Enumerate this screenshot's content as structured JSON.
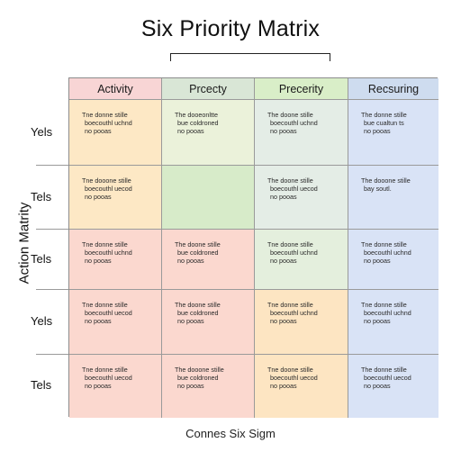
{
  "title": "Six Priority Matrix",
  "footer": "Connes Six Sigm",
  "axis_label": "Action Matrity",
  "columns": [
    "Activity",
    "Prcecty",
    "Precerity",
    "Recsuring"
  ],
  "row_labels": [
    "Yels",
    "Tels",
    "Tels",
    "Yels",
    "Tels"
  ],
  "colors": {
    "header": [
      "#f8d5d5",
      "#d9e6d6",
      "#d9eec8",
      "#cedcef"
    ],
    "rows": [
      [
        "#fde8c5",
        "#ebf2da",
        "#e4ede6",
        "#d9e3f6"
      ],
      [
        "#fde8c5",
        "#d7ebc9",
        "#e4ede6",
        "#d9e3f6"
      ],
      [
        "#fbd8cf",
        "#fbd8cf",
        "#e4efdd",
        "#d9e3f6"
      ],
      [
        "#fbd8cf",
        "#fbd8cf",
        "#fde5c2",
        "#d9e3f6"
      ],
      [
        "#fbd8cf",
        "#fbd8cf",
        "#fde5c2",
        "#d9e3f6"
      ]
    ]
  },
  "cells": [
    [
      {
        "lines": [
          "Tne donne stille",
          "boecouthl uchnd",
          "no pooas"
        ]
      },
      {
        "lines": [
          "The dooeonltte",
          "bue coldroned",
          "no pooas"
        ]
      },
      {
        "lines": [
          "The doone stille",
          "boecouthl uchnd",
          "no pooas"
        ]
      },
      {
        "lines": [
          "The donne stille",
          "bue cualtun ts",
          "no pooas"
        ]
      }
    ],
    [
      {
        "lines": [
          "Tne dooone stille",
          "boecouthl uecod",
          "no pooas"
        ]
      },
      {
        "lines": []
      },
      {
        "lines": [
          "The doone stille",
          "boecouthl uecod",
          "no pooas"
        ]
      },
      {
        "lines": [
          "The dooone stille",
          "bay soutl."
        ]
      }
    ],
    [
      {
        "lines": [
          "Tne donne stille",
          "boecouthl uchnd",
          "no pooas"
        ]
      },
      {
        "lines": [
          "The doone stille",
          "bue coldroned",
          "no pooas"
        ]
      },
      {
        "lines": [
          "Tne doone stille",
          "boecouthl uchnd",
          "no pooas"
        ]
      },
      {
        "lines": [
          "Tne donne stille",
          "boecouthl uchnd",
          "no pooas"
        ]
      }
    ],
    [
      {
        "lines": [
          "Tne donne stille",
          "boecouthl uecod",
          "no pooas"
        ]
      },
      {
        "lines": [
          "The doone stille",
          "bue coldroned",
          "no pooas"
        ]
      },
      {
        "lines": [
          "Tne donne stille",
          "boecouthl uchnd",
          "no pooas"
        ]
      },
      {
        "lines": [
          "Tne donne stille",
          "boecouthl uchnd",
          "no pooas"
        ]
      }
    ],
    [
      {
        "lines": [
          "Tne donne stille",
          "boecouthl uecod",
          "no pooas"
        ]
      },
      {
        "lines": [
          "The dooone stille",
          "bue coldroned",
          "no pooas"
        ]
      },
      {
        "lines": [
          "Tne doone stille",
          "boecouthl uecod",
          "no pooas"
        ]
      },
      {
        "lines": [
          "The donne stille",
          "boecouthl uecod",
          "no pooas"
        ]
      }
    ]
  ]
}
